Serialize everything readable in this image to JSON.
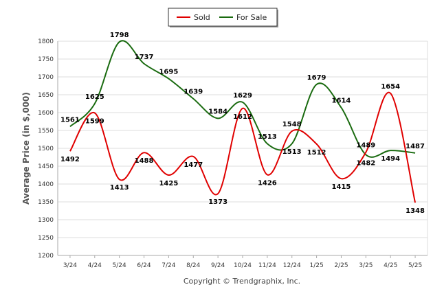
{
  "chart_data": {
    "type": "line",
    "categories": [
      "3/24",
      "4/24",
      "5/24",
      "6/24",
      "7/24",
      "8/24",
      "9/24",
      "10/24",
      "11/24",
      "12/24",
      "1/25",
      "2/25",
      "3/25",
      "4/25",
      "5/25"
    ],
    "series": [
      {
        "name": "Sold",
        "color": "#e00000",
        "values": [
          1492,
          1599,
          1413,
          1488,
          1425,
          1477,
          1373,
          1612,
          1426,
          1548,
          1512,
          1415,
          1489,
          1654,
          1348
        ]
      },
      {
        "name": "For Sale",
        "color": "#1a6b10",
        "values": [
          1561,
          1625,
          1798,
          1737,
          1695,
          1639,
          1584,
          1629,
          1513,
          1513,
          1679,
          1614,
          1482,
          1494,
          1487
        ]
      }
    ],
    "ylabel": "Average Price (in $,000)",
    "ylim": [
      1200,
      1800
    ],
    "yticks": [
      1200,
      1250,
      1300,
      1350,
      1400,
      1450,
      1500,
      1550,
      1600,
      1650,
      1700,
      1750,
      1800
    ],
    "grid": true,
    "legend_position": "top-center"
  },
  "footer": "Copyright © Trendgraphix, Inc."
}
